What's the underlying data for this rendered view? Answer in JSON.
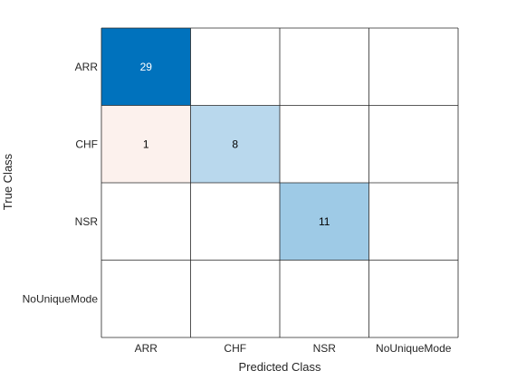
{
  "chart_data": {
    "type": "heatmap",
    "subtype": "confusion-matrix",
    "classes": [
      "ARR",
      "CHF",
      "NSR",
      "NoUniqueMode"
    ],
    "xlabel": "Predicted Class",
    "ylabel": "True Class",
    "matrix": [
      [
        29,
        0,
        0,
        0
      ],
      [
        1,
        8,
        0,
        0
      ],
      [
        0,
        0,
        11,
        0
      ],
      [
        0,
        0,
        0,
        0
      ]
    ],
    "diagonal_color": "#0072BD",
    "offdiagonal_color": "#D95319",
    "empty_color": "#ffffff",
    "grid_color": "#262626",
    "grid": true
  }
}
